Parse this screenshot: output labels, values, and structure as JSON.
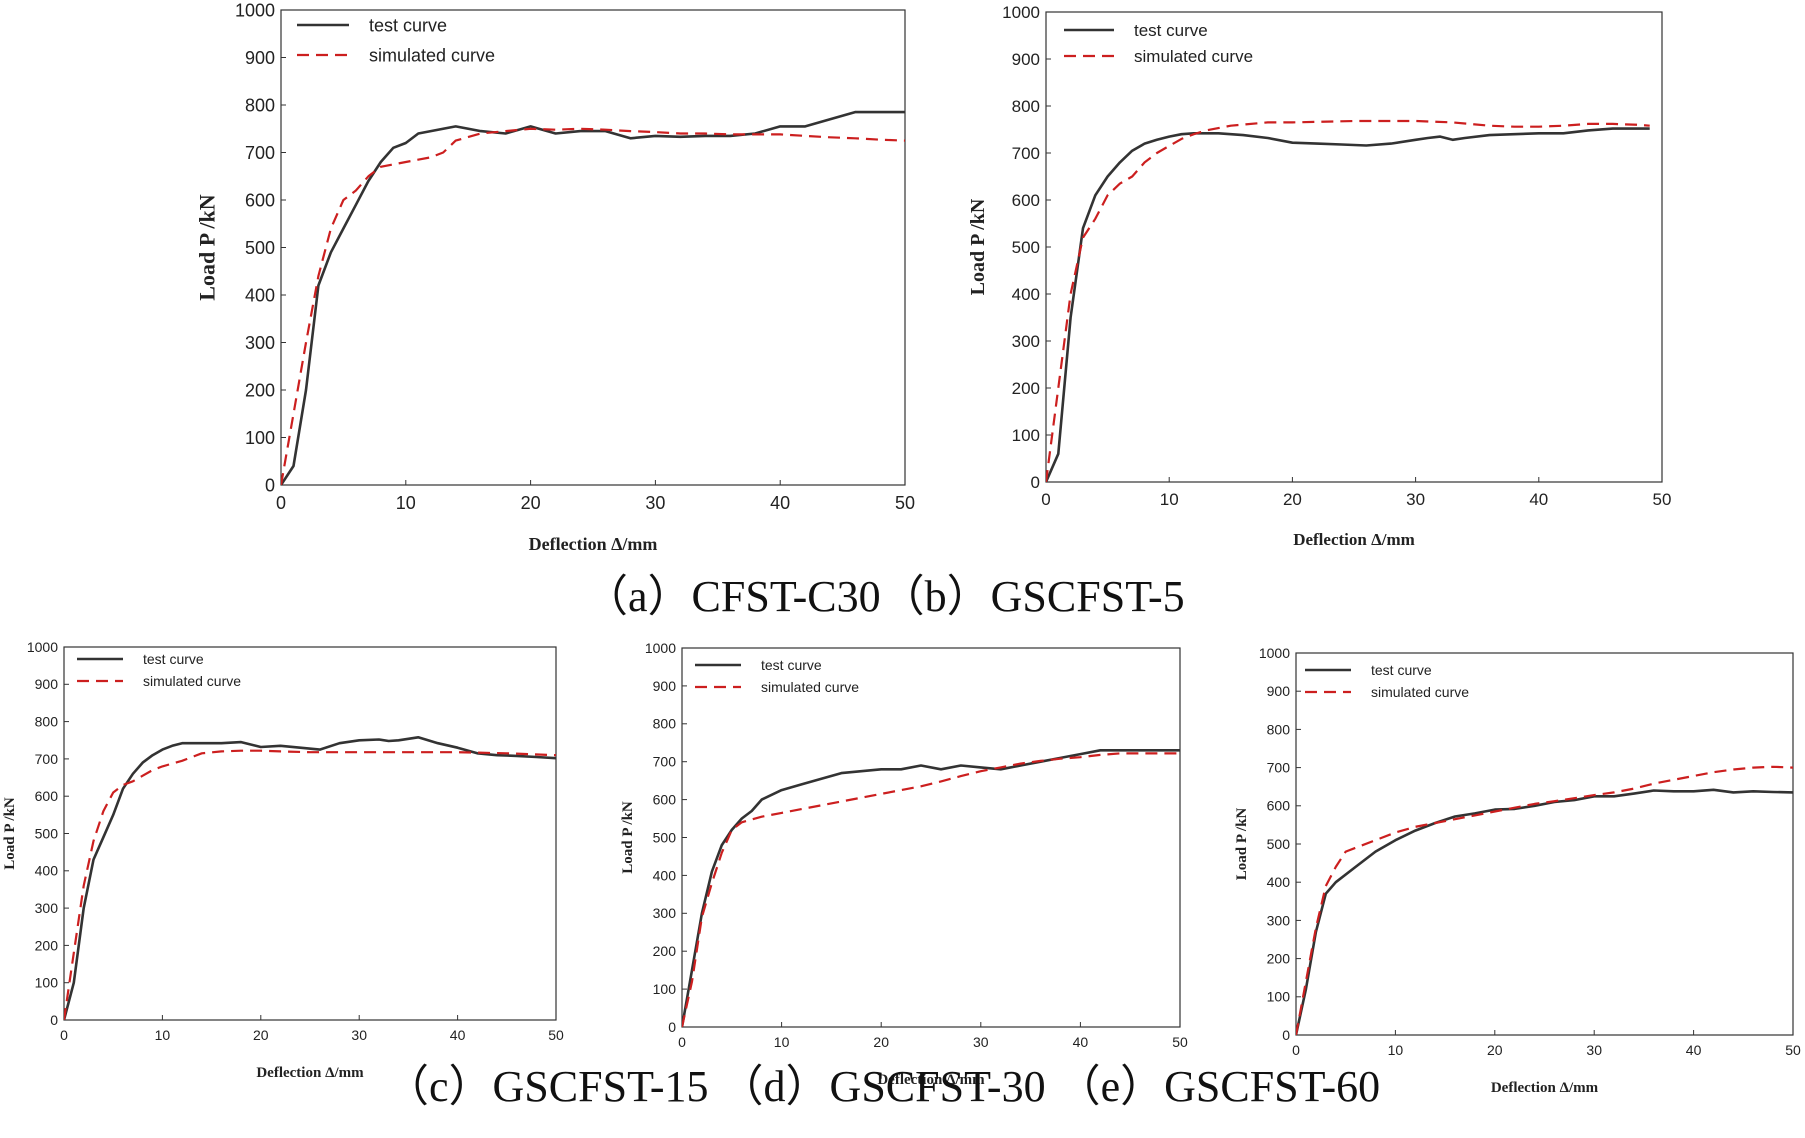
{
  "captions": {
    "top": "（a）CFST-C30（b）GSCFST-5",
    "bottom": "（c）GSCFST-15 （d）GSCFST-30 （e）GSCFST-60"
  },
  "colors": {
    "test": "#333333",
    "simulated": "#cc1f1f",
    "frame": "#333333"
  },
  "chart_data": [
    {
      "id": "a",
      "type": "line",
      "specimen": "CFST-C30",
      "xlabel": "Deflection Δ/mm",
      "ylabel": "Load P /kN",
      "xlim": [
        0,
        50
      ],
      "ylim": [
        0,
        1000
      ],
      "xticks": [
        0,
        10,
        20,
        30,
        40,
        50
      ],
      "yticks": [
        0,
        100,
        200,
        300,
        400,
        500,
        600,
        700,
        800,
        900,
        1000
      ],
      "legend_position": "top-left",
      "series": [
        {
          "name": "test curve",
          "style": "solid",
          "x": [
            0,
            1,
            2,
            3,
            4,
            5,
            6,
            7,
            8,
            9,
            10,
            11,
            12,
            14,
            16,
            18,
            20,
            22,
            24,
            26,
            28,
            30,
            32,
            34,
            36,
            38,
            40,
            42,
            44,
            46,
            48,
            50
          ],
          "y": [
            0,
            40,
            200,
            420,
            490,
            540,
            590,
            640,
            680,
            710,
            720,
            740,
            745,
            755,
            745,
            740,
            755,
            740,
            745,
            745,
            730,
            735,
            733,
            735,
            735,
            740,
            755,
            755,
            770,
            785,
            785,
            785
          ]
        },
        {
          "name": "simulated curve",
          "style": "dashed",
          "x": [
            0,
            1,
            2,
            3,
            4,
            5,
            6,
            7,
            8,
            9,
            10,
            12,
            13,
            14,
            16,
            18,
            20,
            22,
            24,
            26,
            28,
            30,
            32,
            34,
            36,
            38,
            40,
            42,
            44,
            46,
            48,
            50
          ],
          "y": [
            0,
            150,
            300,
            440,
            540,
            600,
            620,
            650,
            670,
            675,
            680,
            690,
            700,
            725,
            740,
            745,
            750,
            748,
            750,
            748,
            745,
            743,
            740,
            740,
            738,
            738,
            738,
            735,
            732,
            730,
            727,
            725
          ]
        }
      ]
    },
    {
      "id": "b",
      "type": "line",
      "specimen": "GSCFST-5",
      "xlabel": "Deflection Δ/mm",
      "ylabel": "Load P /kN",
      "xlim": [
        0,
        50
      ],
      "ylim": [
        0,
        1000
      ],
      "xticks": [
        0,
        10,
        20,
        30,
        40,
        50
      ],
      "yticks": [
        0,
        100,
        200,
        300,
        400,
        500,
        600,
        700,
        800,
        900,
        1000
      ],
      "legend_position": "top-left",
      "series": [
        {
          "name": "test curve",
          "style": "solid",
          "x": [
            0,
            1,
            2,
            3,
            4,
            5,
            6,
            7,
            8,
            9,
            10,
            11,
            12,
            14,
            16,
            18,
            20,
            22,
            24,
            26,
            28,
            30,
            31,
            32,
            33,
            34,
            36,
            38,
            40,
            42,
            44,
            46,
            48,
            49
          ],
          "y": [
            0,
            60,
            350,
            540,
            610,
            650,
            680,
            705,
            720,
            728,
            735,
            740,
            742,
            742,
            738,
            732,
            722,
            720,
            718,
            716,
            720,
            728,
            732,
            735,
            728,
            732,
            738,
            740,
            742,
            742,
            748,
            752,
            752,
            752
          ]
        },
        {
          "name": "simulated curve",
          "style": "dashed",
          "x": [
            0,
            1,
            2,
            3,
            4,
            5,
            6,
            7,
            8,
            9,
            10,
            11,
            12,
            13,
            15,
            18,
            20,
            25,
            30,
            33,
            36,
            38,
            40,
            42,
            44,
            46,
            48,
            49
          ],
          "y": [
            0,
            200,
            400,
            520,
            560,
            610,
            635,
            650,
            680,
            700,
            715,
            730,
            740,
            748,
            758,
            765,
            765,
            768,
            768,
            765,
            758,
            756,
            756,
            758,
            762,
            762,
            760,
            758
          ]
        }
      ]
    },
    {
      "id": "c",
      "type": "line",
      "specimen": "GSCFST-15",
      "xlabel": "Deflection Δ/mm",
      "ylabel": "Load P /kN",
      "xlim": [
        0,
        50
      ],
      "ylim": [
        0,
        1000
      ],
      "xticks": [
        0,
        10,
        20,
        30,
        40,
        50
      ],
      "yticks": [
        0,
        100,
        200,
        300,
        400,
        500,
        600,
        700,
        800,
        900,
        1000
      ],
      "legend_position": "top-left",
      "series": [
        {
          "name": "test curve",
          "style": "solid",
          "x": [
            0,
            1,
            2,
            3,
            4,
            5,
            6,
            7,
            8,
            9,
            10,
            11,
            12,
            14,
            16,
            18,
            20,
            22,
            24,
            26,
            28,
            30,
            32,
            33,
            34,
            36,
            38,
            40,
            42,
            44,
            46,
            48,
            50
          ],
          "y": [
            0,
            100,
            300,
            430,
            490,
            550,
            620,
            660,
            690,
            710,
            725,
            735,
            742,
            742,
            742,
            745,
            732,
            735,
            730,
            725,
            742,
            750,
            752,
            748,
            750,
            758,
            742,
            730,
            715,
            710,
            708,
            705,
            702
          ]
        },
        {
          "name": "simulated curve",
          "style": "dashed",
          "x": [
            0,
            1,
            2,
            3,
            4,
            5,
            6,
            7,
            8,
            9,
            10,
            12,
            14,
            16,
            18,
            20,
            22,
            25,
            30,
            35,
            40,
            45,
            50
          ],
          "y": [
            0,
            180,
            360,
            480,
            560,
            610,
            630,
            640,
            655,
            670,
            680,
            695,
            715,
            720,
            722,
            722,
            720,
            718,
            718,
            718,
            718,
            715,
            710
          ]
        }
      ]
    },
    {
      "id": "d",
      "type": "line",
      "specimen": "GSCFST-30",
      "xlabel": "Deflection Δ/mm",
      "ylabel": "Load P /kN",
      "xlim": [
        0,
        50
      ],
      "ylim": [
        0,
        1000
      ],
      "xticks": [
        0,
        10,
        20,
        30,
        40,
        50
      ],
      "yticks": [
        0,
        100,
        200,
        300,
        400,
        500,
        600,
        700,
        800,
        900,
        1000
      ],
      "legend_position": "top-left",
      "series": [
        {
          "name": "test curve",
          "style": "solid",
          "x": [
            0,
            1,
            2,
            3,
            4,
            5,
            6,
            7,
            8,
            10,
            12,
            14,
            16,
            18,
            20,
            22,
            24,
            26,
            28,
            30,
            32,
            34,
            36,
            38,
            40,
            42,
            44,
            46,
            48,
            50
          ],
          "y": [
            0,
            150,
            300,
            410,
            480,
            520,
            550,
            570,
            600,
            625,
            640,
            655,
            670,
            675,
            680,
            680,
            690,
            680,
            690,
            685,
            680,
            690,
            700,
            710,
            720,
            730,
            730,
            730,
            730,
            730
          ]
        },
        {
          "name": "simulated curve",
          "style": "dashed",
          "x": [
            0,
            1,
            2,
            3,
            4,
            5,
            6,
            8,
            10,
            12,
            14,
            16,
            18,
            20,
            22,
            24,
            26,
            28,
            30,
            32,
            34,
            36,
            38,
            40,
            42,
            44,
            46,
            48,
            50
          ],
          "y": [
            0,
            120,
            290,
            380,
            460,
            520,
            540,
            555,
            565,
            575,
            585,
            595,
            605,
            615,
            625,
            635,
            648,
            662,
            675,
            685,
            695,
            702,
            708,
            712,
            718,
            722,
            722,
            722,
            722
          ]
        }
      ]
    },
    {
      "id": "e",
      "type": "line",
      "specimen": "GSCFST-60",
      "xlabel": "Deflection Δ/mm",
      "ylabel": "Load P /kN",
      "xlim": [
        0,
        50
      ],
      "ylim": [
        0,
        1000
      ],
      "xticks": [
        0,
        10,
        20,
        30,
        40,
        50
      ],
      "yticks": [
        0,
        100,
        200,
        300,
        400,
        500,
        600,
        700,
        800,
        900,
        1000
      ],
      "legend_position": "top-left",
      "series": [
        {
          "name": "test curve",
          "style": "solid",
          "x": [
            0,
            1,
            2,
            3,
            4,
            6,
            8,
            10,
            12,
            14,
            16,
            18,
            20,
            22,
            24,
            26,
            28,
            30,
            32,
            34,
            36,
            38,
            40,
            42,
            44,
            46,
            48,
            50
          ],
          "y": [
            0,
            120,
            270,
            370,
            400,
            440,
            480,
            510,
            535,
            555,
            572,
            580,
            590,
            592,
            600,
            610,
            615,
            625,
            625,
            632,
            640,
            638,
            638,
            642,
            635,
            638,
            636,
            635
          ]
        },
        {
          "name": "simulated curve",
          "style": "dashed",
          "x": [
            0,
            1,
            2,
            3,
            4,
            5,
            6,
            8,
            10,
            12,
            14,
            16,
            18,
            20,
            22,
            24,
            26,
            28,
            30,
            32,
            34,
            36,
            38,
            40,
            42,
            44,
            46,
            48,
            50
          ],
          "y": [
            0,
            140,
            280,
            390,
            440,
            480,
            490,
            510,
            530,
            545,
            555,
            565,
            575,
            585,
            595,
            605,
            612,
            620,
            628,
            635,
            645,
            658,
            668,
            678,
            688,
            695,
            700,
            702,
            700
          ]
        }
      ]
    }
  ]
}
